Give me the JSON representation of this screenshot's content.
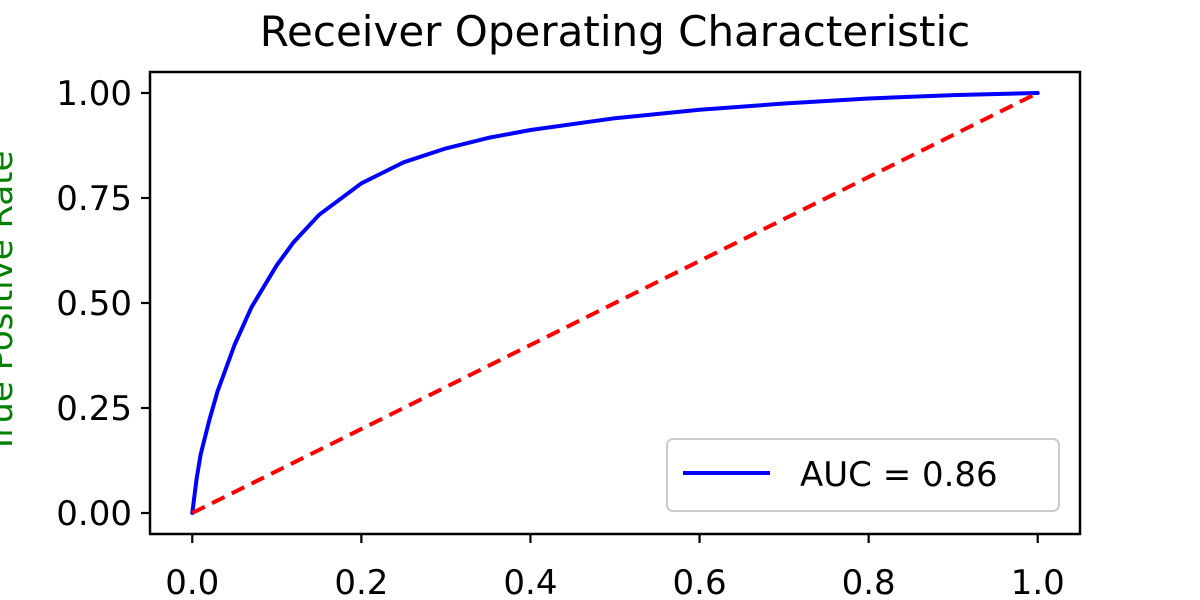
{
  "chart_data": {
    "type": "line",
    "title": "Receiver Operating Characteristic",
    "xlabel": "",
    "ylabel": "True Positive Rate",
    "xlim": [
      -0.05,
      1.05
    ],
    "ylim": [
      -0.05,
      1.05
    ],
    "x_ticks": [
      0.0,
      0.2,
      0.4,
      0.6,
      0.8,
      1.0
    ],
    "x_tick_labels": [
      "0.0",
      "0.2",
      "0.4",
      "0.6",
      "0.8",
      "1.0"
    ],
    "y_ticks": [
      0.0,
      0.25,
      0.5,
      0.75,
      1.0
    ],
    "y_tick_labels": [
      "0.00",
      "0.25",
      "0.50",
      "0.75",
      "1.00"
    ],
    "grid": false,
    "legend_position": "lower-right",
    "series": [
      {
        "name": "AUC = 0.86",
        "color": "#0000ff",
        "style": "solid",
        "x": [
          0.0,
          0.005,
          0.01,
          0.02,
          0.03,
          0.05,
          0.07,
          0.1,
          0.12,
          0.15,
          0.2,
          0.25,
          0.3,
          0.35,
          0.4,
          0.5,
          0.6,
          0.7,
          0.8,
          0.9,
          1.0
        ],
        "y": [
          0.0,
          0.08,
          0.14,
          0.22,
          0.29,
          0.4,
          0.49,
          0.59,
          0.645,
          0.71,
          0.785,
          0.835,
          0.868,
          0.893,
          0.912,
          0.94,
          0.96,
          0.975,
          0.987,
          0.995,
          1.0
        ]
      },
      {
        "name": "",
        "color": "#ff0000",
        "style": "dashed",
        "x": [
          0.0,
          1.0
        ],
        "y": [
          0.0,
          1.0
        ]
      }
    ]
  }
}
